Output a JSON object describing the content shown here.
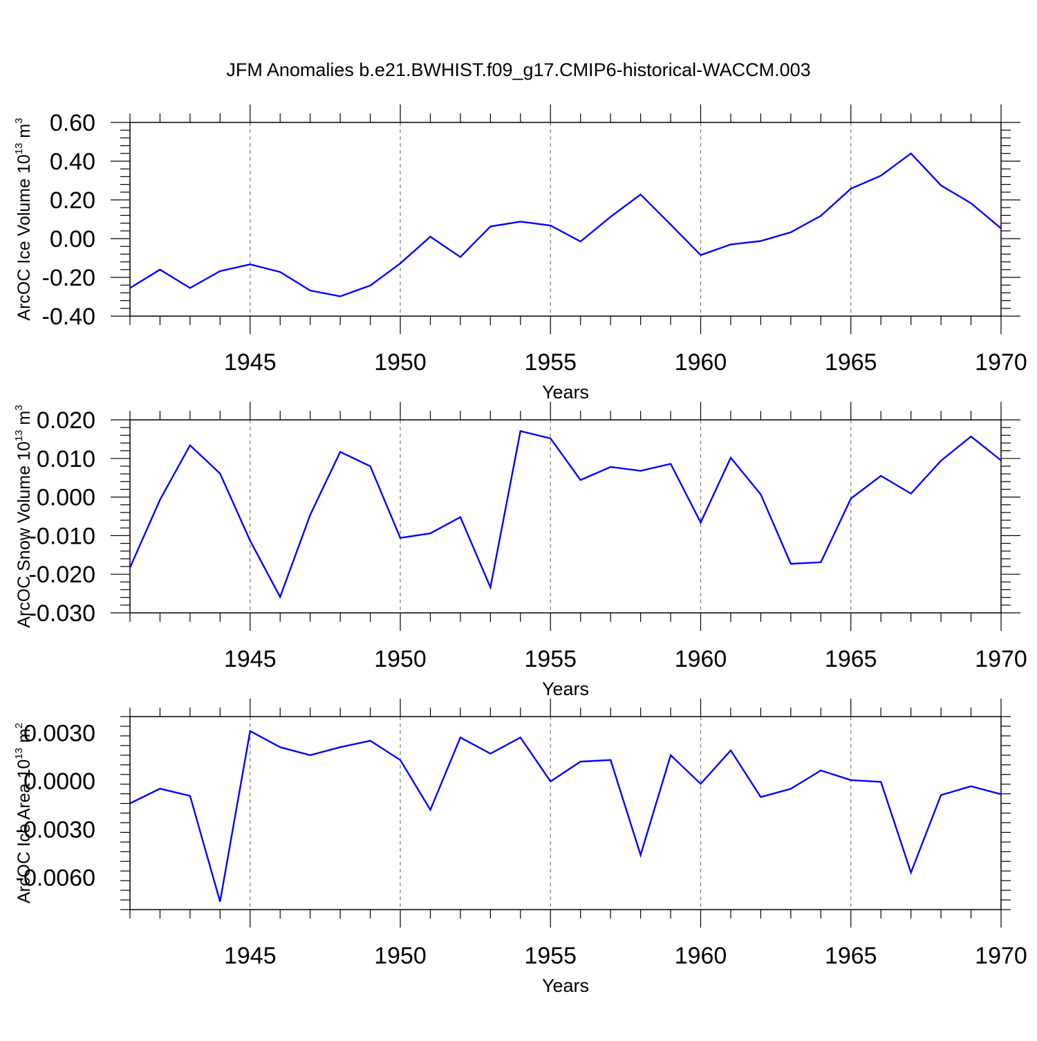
{
  "title": "JFM Anomalies b.e21.BWHIST.f09_g17.CMIP6-historical-WACCM.003",
  "colors": {
    "line": "#0000ff",
    "frame": "#000000",
    "grid": "#777777"
  },
  "chart_data": [
    {
      "type": "line",
      "ylabel": "ArcOC Ice Volume 10",
      "ylabel_sup": "13",
      "ylabel_unit": " m",
      "ylabel_unit_sup": "3",
      "xlabel": "Years",
      "xlim": [
        1941,
        1970
      ],
      "ylim": [
        -0.4,
        0.6
      ],
      "x_ticks": [
        1945,
        1950,
        1955,
        1960,
        1965,
        1970
      ],
      "y_ticks": [
        "-0.40",
        "-0.20",
        "0.00",
        "0.20",
        "0.40",
        "0.60"
      ],
      "grid": "vertical dashed at x ticks",
      "x": [
        1941,
        1942,
        1943,
        1944,
        1945,
        1946,
        1947,
        1948,
        1949,
        1950,
        1951,
        1952,
        1953,
        1954,
        1955,
        1956,
        1957,
        1958,
        1959,
        1960,
        1961,
        1962,
        1963,
        1964,
        1965,
        1966,
        1967,
        1968,
        1969,
        1970
      ],
      "values": [
        -0.255,
        -0.16,
        -0.255,
        -0.168,
        -0.133,
        -0.172,
        -0.268,
        -0.298,
        -0.242,
        -0.128,
        0.01,
        -0.095,
        0.063,
        0.088,
        0.068,
        -0.015,
        0.113,
        0.228,
        0.073,
        -0.085,
        -0.03,
        -0.012,
        0.033,
        0.118,
        0.258,
        0.325,
        0.44,
        0.275,
        0.183,
        0.053
      ]
    },
    {
      "type": "line",
      "ylabel": "ArcOC Snow Volume 10",
      "ylabel_sup": "13",
      "ylabel_unit": " m",
      "ylabel_unit_sup": "3",
      "xlabel": "Years",
      "xlim": [
        1941,
        1970
      ],
      "ylim": [
        -0.03,
        0.02
      ],
      "x_ticks": [
        1945,
        1950,
        1955,
        1960,
        1965,
        1970
      ],
      "y_ticks": [
        "-0.030",
        "-0.020",
        "-0.010",
        "0.000",
        "0.010",
        "0.020"
      ],
      "grid": "vertical dashed at x ticks",
      "x": [
        1941,
        1942,
        1943,
        1944,
        1945,
        1946,
        1947,
        1948,
        1949,
        1950,
        1951,
        1952,
        1953,
        1954,
        1955,
        1956,
        1957,
        1958,
        1959,
        1960,
        1961,
        1962,
        1963,
        1964,
        1965,
        1966,
        1967,
        1968,
        1969,
        1970
      ],
      "values": [
        -0.0183,
        -0.0007,
        0.0134,
        0.0061,
        -0.0113,
        -0.0259,
        -0.0046,
        0.0117,
        0.008,
        -0.0106,
        -0.0094,
        -0.0052,
        -0.0234,
        0.0171,
        0.0152,
        0.0044,
        0.0078,
        0.0068,
        0.0086,
        -0.0066,
        0.0102,
        0.0007,
        -0.0173,
        -0.0169,
        -0.0004,
        0.0055,
        0.0009,
        0.0094,
        0.0157,
        0.0095
      ]
    },
    {
      "type": "line",
      "ylabel": "ArcOC Ice Area 10",
      "ylabel_sup": "13",
      "ylabel_unit": " m",
      "ylabel_unit_sup": "2",
      "xlabel": "Years",
      "xlim": [
        1941,
        1970
      ],
      "ylim": [
        -0.008,
        0.004
      ],
      "x_ticks": [
        1945,
        1950,
        1955,
        1960,
        1965,
        1970
      ],
      "y_ticks": [
        "-0.0060",
        "-0.0030",
        "0.0000",
        "0.0030"
      ],
      "y_tick_values": [
        -0.006,
        -0.003,
        0.0,
        0.003
      ],
      "grid": "vertical dashed at x ticks",
      "x": [
        1941,
        1942,
        1943,
        1944,
        1945,
        1946,
        1947,
        1948,
        1949,
        1950,
        1951,
        1952,
        1953,
        1954,
        1955,
        1956,
        1957,
        1958,
        1959,
        1960,
        1961,
        1962,
        1963,
        1964,
        1965,
        1966,
        1967,
        1968,
        1969,
        1970
      ],
      "values": [
        -0.0014,
        -0.00048,
        -0.00093,
        -0.0075,
        0.0031,
        0.0021,
        0.0016,
        0.0021,
        0.0025,
        0.0013,
        -0.0018,
        0.0027,
        0.0017,
        0.0027,
        -3e-05,
        0.0012,
        0.0013,
        -0.0046,
        0.0016,
        -0.00018,
        0.0019,
        -0.001,
        -0.00049,
        0.00065,
        5e-05,
        -6e-05,
        -0.0057,
        -0.00088,
        -0.00033,
        -0.00083
      ]
    }
  ]
}
